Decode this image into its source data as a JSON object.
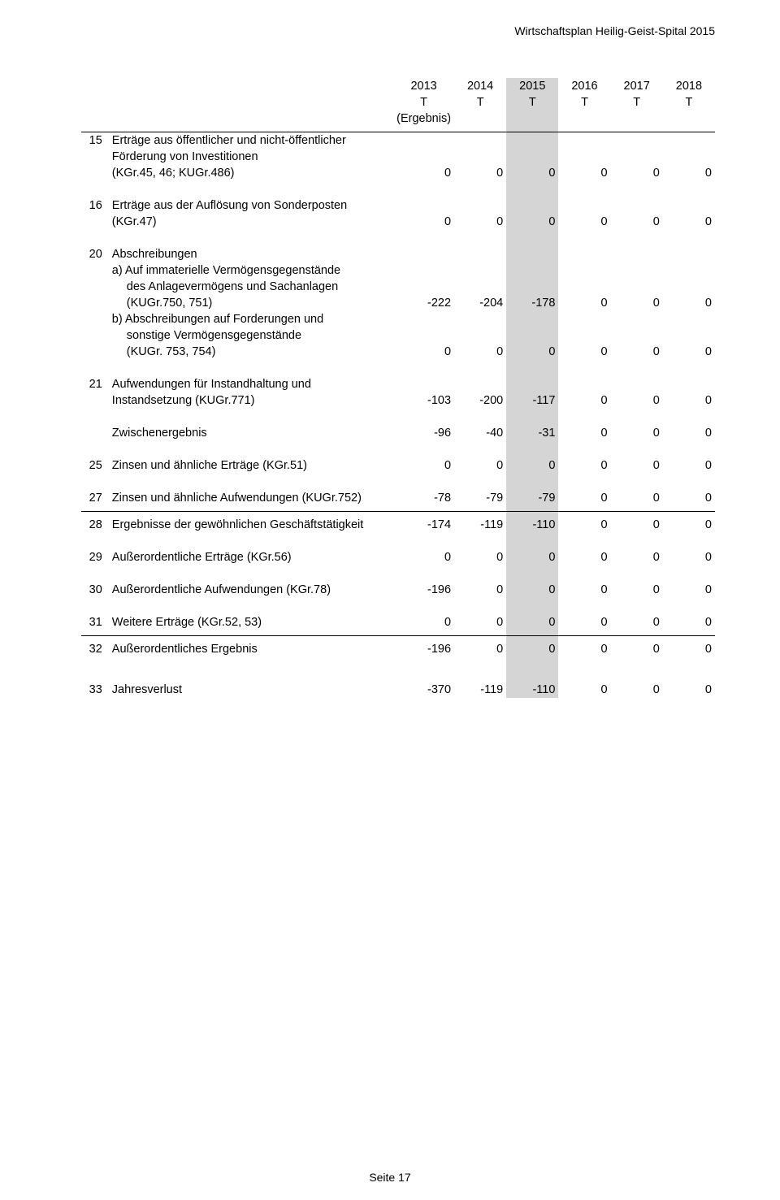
{
  "header": {
    "title": "Wirtschaftsplan Heilig-Geist-Spital 2015"
  },
  "table": {
    "years": [
      "2013",
      "2014",
      "2015",
      "2016",
      "2017",
      "2018"
    ],
    "unit": "T",
    "ergebnis": "(Ergebnis)",
    "highlight_col_index": 2,
    "rows": [
      {
        "num": "15",
        "label": "Erträge aus öffentlicher und nicht-öffentlicher",
        "values": [
          "",
          "",
          "",
          "",
          "",
          ""
        ]
      },
      {
        "num": "",
        "label": "Förderung von Investitionen",
        "values": [
          "",
          "",
          "",
          "",
          "",
          ""
        ]
      },
      {
        "num": "",
        "label": "(KGr.45, 46; KUGr.486)",
        "values": [
          "0",
          "0",
          "0",
          "0",
          "0",
          "0"
        ]
      },
      {
        "type": "spacer",
        "size": "md"
      },
      {
        "num": "16",
        "label": "Erträge aus der Auflösung von Sonderposten",
        "values": [
          "",
          "",
          "",
          "",
          "",
          ""
        ]
      },
      {
        "num": "",
        "label": "(KGr.47)",
        "values": [
          "0",
          "0",
          "0",
          "0",
          "0",
          "0"
        ]
      },
      {
        "type": "spacer",
        "size": "md"
      },
      {
        "num": "20",
        "label": "Abschreibungen",
        "values": [
          "",
          "",
          "",
          "",
          "",
          ""
        ]
      },
      {
        "num": "",
        "label": "a) Auf immaterielle Vermögensgegenstände",
        "values": [
          "",
          "",
          "",
          "",
          "",
          ""
        ]
      },
      {
        "num": "",
        "label": "des Anlagevermögens und Sachanlagen",
        "values": [
          "",
          "",
          "",
          "",
          "",
          ""
        ],
        "indent": true
      },
      {
        "num": "",
        "label": "(KUGr.750, 751)",
        "values": [
          "-222",
          "-204",
          "-178",
          "0",
          "0",
          "0"
        ],
        "indent": true
      },
      {
        "num": "",
        "label": "b) Abschreibungen auf Forderungen und",
        "values": [
          "",
          "",
          "",
          "",
          "",
          ""
        ]
      },
      {
        "num": "",
        "label": "sonstige Vermögensgegenstände",
        "values": [
          "",
          "",
          "",
          "",
          "",
          ""
        ],
        "indent": true
      },
      {
        "num": "",
        "label": "(KUGr. 753, 754)",
        "values": [
          "0",
          "0",
          "0",
          "0",
          "0",
          "0"
        ],
        "indent": true
      },
      {
        "type": "spacer",
        "size": "md"
      },
      {
        "num": "21",
        "label": "Aufwendungen für Instandhaltung und",
        "values": [
          "",
          "",
          "",
          "",
          "",
          ""
        ]
      },
      {
        "num": "",
        "label": "Instandsetzung (KUGr.771)",
        "values": [
          "-103",
          "-200",
          "-117",
          "0",
          "0",
          "0"
        ]
      },
      {
        "type": "spacer",
        "size": "md"
      },
      {
        "num": "",
        "label": "Zwischenergebnis",
        "values": [
          "-96",
          "-40",
          "-31",
          "0",
          "0",
          "0"
        ]
      },
      {
        "type": "spacer",
        "size": "md"
      },
      {
        "num": "25",
        "label": "Zinsen und ähnliche Erträge (KGr.51)",
        "values": [
          "0",
          "0",
          "0",
          "0",
          "0",
          "0"
        ]
      },
      {
        "type": "spacer",
        "size": "md"
      },
      {
        "num": "27",
        "label": "Zinsen und ähnliche Aufwendungen (KUGr.752)",
        "values": [
          "-78",
          "-79",
          "-79",
          "0",
          "0",
          "0"
        ]
      },
      {
        "type": "spacer",
        "size": "sm"
      },
      {
        "type": "hr"
      },
      {
        "type": "spacer",
        "size": "sm"
      },
      {
        "num": "28",
        "label": "Ergebnisse der gewöhnlichen Geschäftstätigkeit",
        "values": [
          "-174",
          "-119",
          "-110",
          "0",
          "0",
          "0"
        ]
      },
      {
        "type": "spacer",
        "size": "md"
      },
      {
        "num": "29",
        "label": "Außerordentliche Erträge (KGr.56)",
        "values": [
          "0",
          "0",
          "0",
          "0",
          "0",
          "0"
        ]
      },
      {
        "type": "spacer",
        "size": "md"
      },
      {
        "num": "30",
        "label": "Außerordentliche Aufwendungen (KGr.78)",
        "values": [
          "-196",
          "0",
          "0",
          "0",
          "0",
          "0"
        ]
      },
      {
        "type": "spacer",
        "size": "md"
      },
      {
        "num": "31",
        "label": "Weitere Erträge (KGr.52, 53)",
        "values": [
          "0",
          "0",
          "0",
          "0",
          "0",
          "0"
        ]
      },
      {
        "type": "spacer",
        "size": "sm"
      },
      {
        "type": "hr"
      },
      {
        "type": "spacer",
        "size": "sm"
      },
      {
        "num": "32",
        "label": "Außerordentliches Ergebnis",
        "values": [
          "-196",
          "0",
          "0",
          "0",
          "0",
          "0"
        ]
      },
      {
        "type": "spacer",
        "size": "lg"
      },
      {
        "num": "33",
        "label": "Jahresverlust",
        "values": [
          "-370",
          "-119",
          "-110",
          "0",
          "0",
          "0"
        ]
      }
    ]
  },
  "footer": {
    "page": "Seite 17"
  },
  "style": {
    "highlight_color": "#d5d5d5",
    "text_color": "#000000",
    "background": "#ffffff",
    "font_family": "Arial"
  }
}
